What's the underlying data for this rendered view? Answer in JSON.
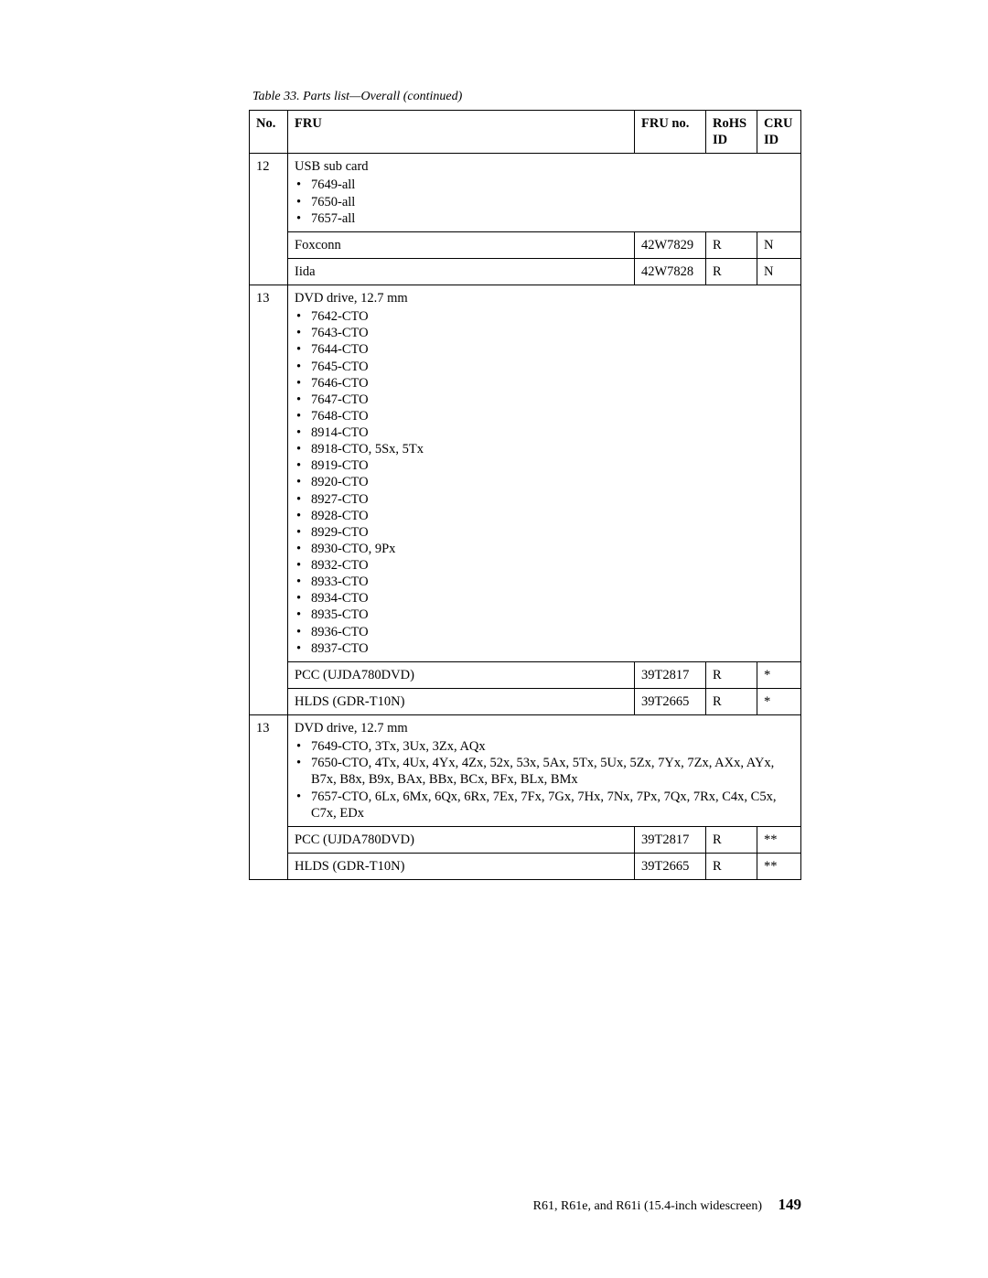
{
  "caption": "Table 33. Parts list—Overall (continued)",
  "columns": {
    "no": "No.",
    "fru": "FRU",
    "fno": "FRU no.",
    "rohs": "RoHS ID",
    "cru": "CRU ID"
  },
  "row12": {
    "no": "12",
    "title": "USB sub card",
    "models": [
      "7649-all",
      "7650-all",
      "7657-all"
    ],
    "sub": [
      {
        "name": "Foxconn",
        "fno": "42W7829",
        "rohs": "R",
        "cru": "N"
      },
      {
        "name": "Iida",
        "fno": "42W7828",
        "rohs": "R",
        "cru": "N"
      }
    ]
  },
  "row13a": {
    "no": "13",
    "title": "DVD drive, 12.7 mm",
    "models": [
      "7642-CTO",
      "7643-CTO",
      "7644-CTO",
      "7645-CTO",
      "7646-CTO",
      "7647-CTO",
      "7648-CTO",
      "8914-CTO",
      "8918-CTO, 5Sx, 5Tx",
      "8919-CTO",
      "8920-CTO",
      "8927-CTO",
      "8928-CTO",
      "8929-CTO",
      "8930-CTO, 9Px",
      "8932-CTO",
      "8933-CTO",
      "8934-CTO",
      "8935-CTO",
      "8936-CTO",
      "8937-CTO"
    ],
    "sub": [
      {
        "name": "PCC (UJDA780DVD)",
        "fno": "39T2817",
        "rohs": "R",
        "cru": "*"
      },
      {
        "name": "HLDS (GDR-T10N)",
        "fno": "39T2665",
        "rohs": "R",
        "cru": "*"
      }
    ]
  },
  "row13b": {
    "no": "13",
    "title": "DVD drive, 12.7 mm",
    "models": [
      "7649-CTO, 3Tx, 3Ux, 3Zx, AQx",
      "7650-CTO, 4Tx, 4Ux, 4Yx, 4Zx, 52x, 53x, 5Ax, 5Tx, 5Ux, 5Zx, 7Yx, 7Zx, AXx, AYx, B7x, B8x, B9x, BAx, BBx, BCx, BFx, BLx, BMx",
      "7657-CTO, 6Lx, 6Mx, 6Qx, 6Rx, 7Ex, 7Fx, 7Gx, 7Hx, 7Nx, 7Px, 7Qx, 7Rx, C4x, C5x, C7x, EDx"
    ],
    "sub": [
      {
        "name": "PCC (UJDA780DVD)",
        "fno": "39T2817",
        "rohs": "R",
        "cru": "**"
      },
      {
        "name": "HLDS (GDR-T10N)",
        "fno": "39T2665",
        "rohs": "R",
        "cru": "**"
      }
    ]
  },
  "footer": {
    "text": "R61, R61e, and R61i (15.4-inch widescreen)",
    "page": "149"
  }
}
